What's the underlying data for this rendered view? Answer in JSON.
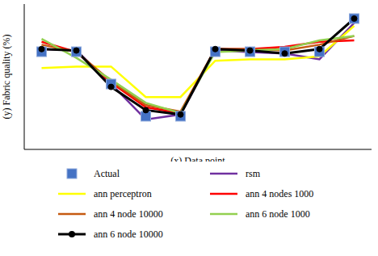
{
  "chart_data": {
    "type": "line",
    "x_label": "(x) Data point",
    "y_label": "(y) Fabric quality (%)",
    "x": [
      1,
      2,
      3,
      4,
      5,
      6,
      7,
      8,
      9,
      10
    ],
    "xlim": [
      0.5,
      10.5
    ],
    "ylim": [
      0,
      100
    ],
    "tick_labels": false,
    "grid": false,
    "legend": "bottom",
    "series": [
      {
        "name": "Actual",
        "color": "#4472c4",
        "marker": "square",
        "line_style": "none",
        "values": [
          67.2,
          67.2,
          45,
          22.8,
          22.8,
          67.2,
          67.2,
          67.2,
          67.2,
          90
        ]
      },
      {
        "name": "rsm",
        "color": "#7030a0",
        "marker": "none",
        "line_style": "solid",
        "values": [
          69,
          68,
          45,
          20.6,
          24,
          68,
          67,
          66,
          62,
          87
        ]
      },
      {
        "name": "ann perceptron",
        "color": "#ffff00",
        "marker": "none",
        "line_style": "solid",
        "values": [
          56,
          57,
          57,
          36,
          36,
          61,
          62,
          62,
          64,
          85
        ]
      },
      {
        "name": "ann 4 nodes 1000",
        "color": "#ff0000",
        "marker": "none",
        "line_style": "solid",
        "values": [
          74,
          67,
          46,
          29,
          25,
          69,
          69,
          70.5,
          74,
          75
        ]
      },
      {
        "name": "ann 4 node 10000",
        "color": "#c55a11",
        "marker": "none",
        "line_style": "solid",
        "values": [
          72,
          67,
          47,
          30.5,
          26,
          69,
          69,
          68,
          72,
          78
        ]
      },
      {
        "name": "ann 6 node 1000",
        "color": "#92d050",
        "marker": "none",
        "line_style": "solid",
        "values": [
          76,
          63,
          48,
          32,
          25,
          67,
          68,
          69,
          75,
          78
        ]
      },
      {
        "name": "ann 6 node 10000",
        "color": "#000000",
        "marker": "circle",
        "line_style": "solid",
        "values": [
          69,
          68,
          43,
          27,
          24,
          69,
          68,
          66,
          69,
          90
        ]
      }
    ]
  }
}
